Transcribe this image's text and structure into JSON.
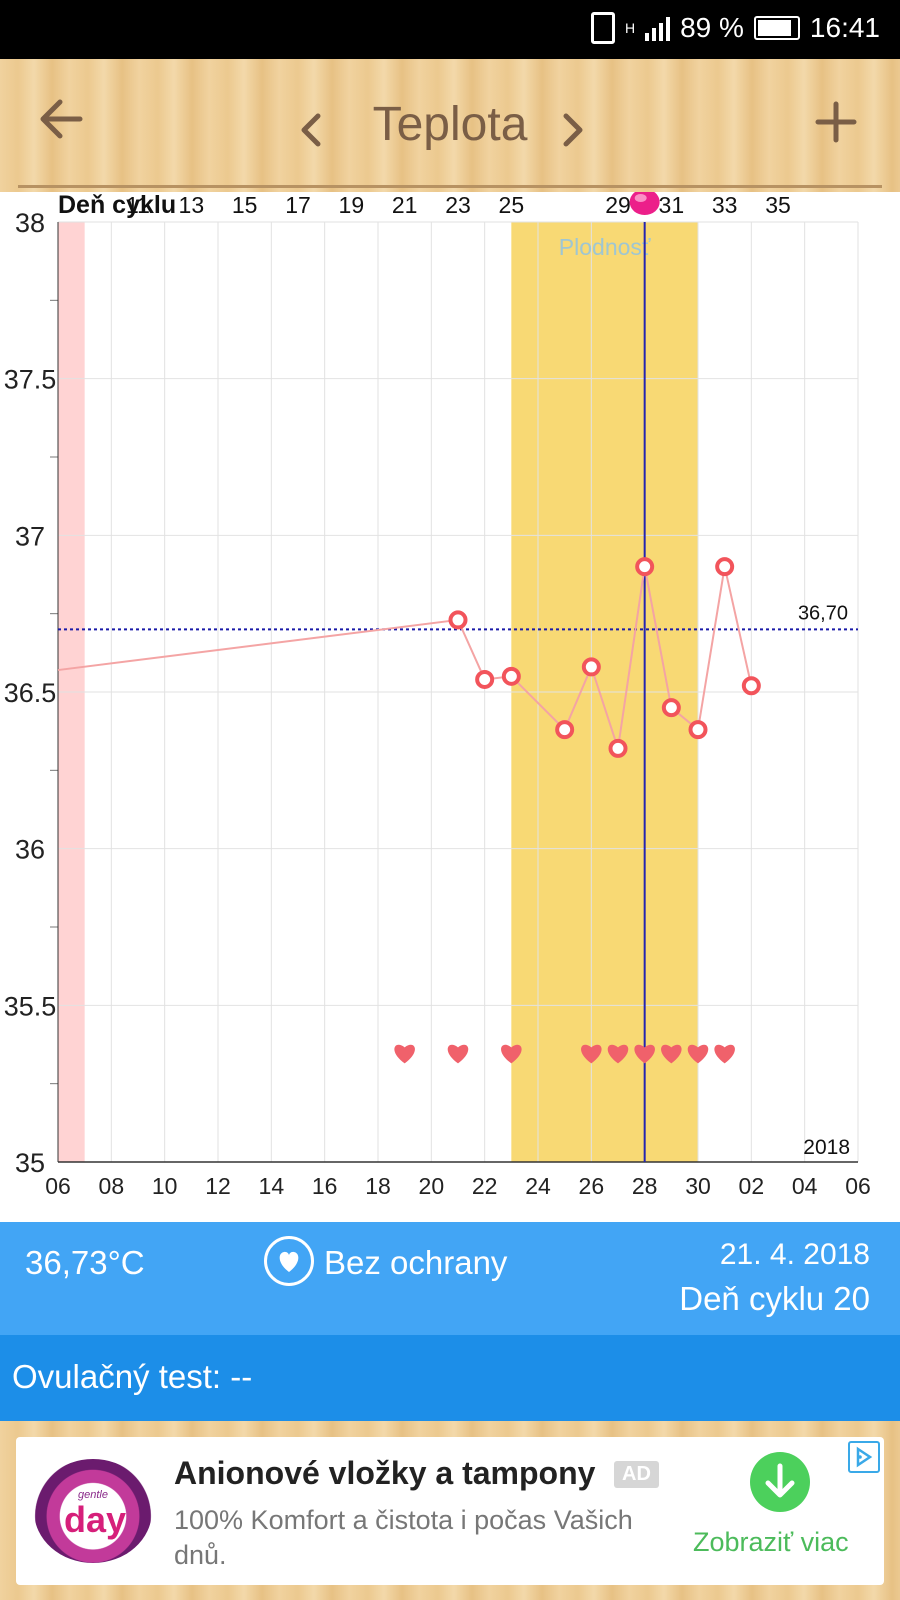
{
  "status_bar": {
    "battery": "89 %",
    "time": "16:41",
    "network": "H"
  },
  "header": {
    "title": "Teplota",
    "back_icon": "arrow-left-icon",
    "prev_icon": "chevron-left-icon",
    "next_icon": "chevron-right-icon",
    "add_icon": "plus-icon"
  },
  "chart_data": {
    "type": "line",
    "title": "",
    "top_axis_label": "Deň cyklu",
    "top_ticks": [
      "11",
      "13",
      "15",
      "17",
      "19",
      "21",
      "23",
      "25",
      "",
      "29",
      "31",
      "33",
      "35"
    ],
    "x_ticks": [
      "06",
      "08",
      "10",
      "12",
      "14",
      "16",
      "18",
      "20",
      "22",
      "24",
      "26",
      "28",
      "30",
      "02",
      "04",
      "06"
    ],
    "y_ticks": [
      "38",
      "37.5",
      "37",
      "36.5",
      "36",
      "35.5",
      "35"
    ],
    "ylim": [
      35,
      38
    ],
    "year_label": "2018",
    "coverline_label": "36,70",
    "coverline": 36.7,
    "fertile_label": "Plodnosť",
    "fertile_window": [
      23,
      30
    ],
    "period_days": [
      6,
      7
    ],
    "selected_day": 28,
    "series": [
      {
        "x": [
          21,
          22,
          23,
          25,
          26,
          27,
          28,
          29,
          30,
          31,
          32
        ],
        "y": [
          36.73,
          36.54,
          36.55,
          36.38,
          36.58,
          36.32,
          36.9,
          36.45,
          36.38,
          36.9,
          36.52
        ]
      }
    ],
    "line_start_y": 36.57,
    "intercourse_days": [
      19,
      21,
      23,
      26,
      27,
      28,
      29,
      30,
      31
    ],
    "colors": {
      "line": "#f4a4a4",
      "point": "#f2545b",
      "fertile": "#f8d974",
      "period": "#ffd3d3",
      "coverline": "#1a1aa8",
      "selected": "#2424b0",
      "heart": "#f0616b"
    },
    "grid": true
  },
  "info": {
    "temperature": "36,73°C",
    "protection": "Bez ochrany",
    "date": "21. 4. 2018",
    "cycle_day": "Deň cyklu 20",
    "protection_icon": "heart-circle-icon"
  },
  "ovulation": {
    "label": "Ovulačný test: --"
  },
  "ad": {
    "brand": "day",
    "brand_small": "gentle",
    "title": "Anionové vložky a tampony",
    "badge": "AD",
    "text": "100% Komfort a čistota i počas Vašich dnů.",
    "cta": "Zobraziť viac",
    "adchoices_icon": "adchoices-icon",
    "download_icon": "download-icon"
  }
}
